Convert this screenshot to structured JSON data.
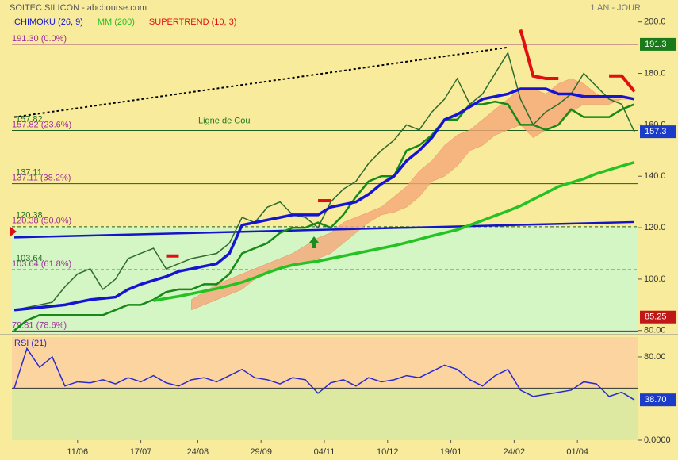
{
  "chart_data": {
    "type": "line",
    "title": "SOITEC SILICON - abcbourse.com",
    "period": "1 AN - JOUR",
    "annotation": "Ligne de Cou",
    "x": [
      0,
      2,
      4,
      6,
      8,
      10,
      12,
      14,
      16,
      18,
      20,
      22,
      24,
      26,
      28,
      30,
      32,
      34,
      36,
      38,
      40,
      42,
      44,
      46,
      48,
      50,
      52,
      54,
      56,
      58,
      60,
      62,
      64,
      66,
      68,
      70,
      72,
      74,
      76,
      78,
      80,
      82,
      84,
      86,
      88,
      90,
      92,
      94,
      96,
      98
    ],
    "xlim": [
      0,
      98
    ],
    "xticks": [
      {
        "value": 10,
        "label": "11/06"
      },
      {
        "value": 20,
        "label": "17/07"
      },
      {
        "value": 29,
        "label": "24/08"
      },
      {
        "value": 39,
        "label": "29/09"
      },
      {
        "value": 49,
        "label": "04/11"
      },
      {
        "value": 59,
        "label": "10/12"
      },
      {
        "value": 69,
        "label": "19/01"
      },
      {
        "value": 79,
        "label": "24/02"
      },
      {
        "value": 89,
        "label": "01/04"
      }
    ],
    "ylim": [
      79,
      207
    ],
    "yticks": [
      {
        "value": 200,
        "label": "200.0"
      },
      {
        "value": 180,
        "label": "180.0"
      },
      {
        "value": 160,
        "label": "160.0"
      },
      {
        "value": 140,
        "label": "140.0"
      },
      {
        "value": 120,
        "label": "120.0"
      },
      {
        "value": 100,
        "label": "100.0"
      },
      {
        "value": 80,
        "label": "80.00"
      }
    ],
    "price": {
      "color": "#2e6b2e",
      "values": [
        88,
        89,
        90,
        91,
        97,
        102,
        104,
        96,
        100,
        108,
        110,
        112,
        104,
        106,
        108,
        109,
        110,
        114,
        124,
        122,
        128,
        130,
        125,
        124,
        120,
        130,
        135,
        138,
        145,
        150,
        154,
        160,
        158,
        165,
        170,
        178,
        168,
        172,
        180,
        188,
        170,
        160,
        165,
        168,
        172,
        180,
        175,
        170,
        168,
        157.3
      ]
    },
    "series": [
      {
        "name": "ICHIMOKU (26, 9)",
        "color": "#1414d2",
        "values": [
          88,
          88.5,
          89,
          89.5,
          90,
          91,
          92,
          92.5,
          93,
          96,
          98,
          99.5,
          101,
          103,
          104,
          105,
          106,
          110,
          121,
          122,
          123,
          124,
          125,
          125,
          125,
          128,
          129,
          130,
          133,
          137,
          140,
          146,
          150,
          155,
          162,
          164,
          167,
          170,
          171,
          172,
          174,
          174,
          174,
          172,
          172,
          171,
          171,
          171,
          171,
          170
        ]
      },
      {
        "name": "MM (200)",
        "color": "#22c322",
        "values": [
          null,
          null,
          null,
          null,
          null,
          null,
          null,
          null,
          null,
          null,
          null,
          91.6,
          92.5,
          93.3,
          94.3,
          95.3,
          96.3,
          97.5,
          98.8,
          100.5,
          102.5,
          104.2,
          105.5,
          106.3,
          107,
          108,
          109,
          110,
          111,
          112,
          113,
          114.2,
          115.5,
          116.8,
          118,
          119.2,
          121,
          122.8,
          124.7,
          126.5,
          128.5,
          131,
          133.5,
          136,
          137.5,
          139,
          141,
          142.5,
          144,
          145.4
        ]
      },
      {
        "name": "SUPERTREND (10, 3)",
        "color": "#e01010",
        "values": [
          null,
          null,
          null,
          null,
          null,
          null,
          null,
          null,
          null,
          null,
          null,
          null,
          109,
          109,
          null,
          null,
          null,
          null,
          null,
          null,
          null,
          null,
          null,
          null,
          130.5,
          130.5,
          null,
          null,
          null,
          null,
          null,
          null,
          null,
          null,
          null,
          null,
          null,
          null,
          null,
          null,
          197,
          179,
          178,
          178,
          null,
          null,
          null,
          179,
          179,
          173
        ]
      }
    ],
    "kijun": {
      "color": "#168a16",
      "values": [
        80,
        84,
        86,
        86,
        86,
        86,
        86,
        86,
        88,
        90,
        90,
        92,
        95,
        96,
        96,
        98,
        98,
        102,
        110,
        112,
        114,
        118,
        120,
        120,
        122,
        120,
        125,
        132,
        138,
        140,
        140,
        150,
        152,
        156,
        162,
        162,
        168,
        168,
        169,
        168,
        160,
        160,
        158,
        160,
        166,
        163,
        163,
        163,
        166,
        168
      ]
    },
    "kumo": {
      "color": "#f5a878",
      "upper": [
        null,
        null,
        null,
        null,
        null,
        null,
        null,
        null,
        null,
        null,
        null,
        null,
        null,
        null,
        92,
        95,
        98,
        100,
        102,
        104,
        106,
        108,
        110,
        113,
        116,
        118,
        122,
        124,
        126,
        128,
        132,
        136,
        142,
        146,
        152,
        156,
        158,
        162,
        166,
        170,
        174,
        174,
        172,
        176,
        178,
        176,
        172,
        170,
        170,
        170
      ],
      "lower": [
        null,
        null,
        null,
        null,
        null,
        null,
        null,
        null,
        null,
        null,
        null,
        null,
        null,
        null,
        88,
        90,
        92,
        94,
        96,
        100,
        102,
        104,
        105,
        106,
        108,
        110,
        114,
        118,
        122,
        125,
        126,
        128,
        132,
        138,
        140,
        144,
        150,
        152,
        156,
        158,
        160,
        155,
        158,
        160,
        165,
        168,
        168,
        168,
        170,
        170
      ]
    },
    "trendlines": [
      {
        "color": "#1414c8",
        "x": [
          0,
          98
        ],
        "values": [
          116.2,
          122.2
        ]
      },
      {
        "color": "#000000",
        "x": [
          0,
          78
        ],
        "values": [
          163,
          190.1
        ]
      }
    ],
    "fibonacci": [
      {
        "value": 191.3,
        "label": "191.30 (0.0%)"
      },
      {
        "value": 157.82,
        "label": "157.82 (23.6%)",
        "big": true
      },
      {
        "value": 137.11,
        "label": "137.11 (38.2%)",
        "big": true
      },
      {
        "value": 120.38,
        "label": "120.38 (50.0%)",
        "big": true,
        "dashed": true
      },
      {
        "value": 103.64,
        "label": "103.64 (61.8%)",
        "big": true,
        "dashed": true
      },
      {
        "value": 79.81,
        "label": "79.81 (78.6%)"
      }
    ],
    "markers": [
      {
        "value": 191.3,
        "color": "#1a7a1a"
      },
      {
        "value": 157.3,
        "color": "#1a3cc8"
      },
      {
        "value": 85.25,
        "color": "#c01818"
      }
    ],
    "rsi": {
      "label": "RSI (21)",
      "color": "#2a2ad0",
      "values": [
        50,
        88,
        70,
        80,
        52,
        56,
        55,
        58,
        54,
        60,
        56,
        62,
        55,
        52,
        58,
        60,
        56,
        62,
        68,
        60,
        58,
        54,
        60,
        58,
        45,
        55,
        58,
        52,
        60,
        56,
        58,
        62,
        60,
        66,
        72,
        68,
        58,
        52,
        62,
        68,
        48,
        42,
        44,
        46,
        48,
        56,
        54,
        42,
        46,
        38.7
      ],
      "ylim": [
        0,
        99
      ],
      "yticks": [
        {
          "value": 80,
          "label": "80.00"
        },
        {
          "value": 0,
          "label": "0.0000"
        }
      ],
      "level": 50,
      "last": {
        "value": 38.7,
        "label": "38.70"
      }
    }
  }
}
